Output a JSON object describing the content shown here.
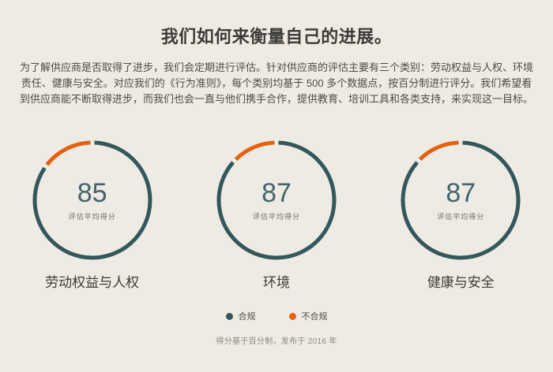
{
  "colors": {
    "background": "#EEEBE4",
    "compliant": "#33575D",
    "noncompliant": "#E6600D",
    "title_text": "#3E3C38",
    "body_text": "#4E4A44",
    "score_text": "#45636C",
    "muted_text": "#6F6C66",
    "footnote_text": "#8A867F"
  },
  "header": {
    "title": "我们如何来衡量自己的进展。",
    "paragraph": "为了解供应商是否取得了进步，我们会定期进行评估。针对供应商的评估主要有三个类别：劳动权益与人权、环境责任、健康与安全。对应我们的《行为准则》，每个类别均基于 500 多个数据点，按百分制进行评分。我们希望看到供应商能不断取得进步，而我们也会一直与他们携手合作，提供教育、培训工具和各类支持，来实现这一目标。"
  },
  "chart_data": {
    "type": "pie",
    "variant": "donut-progress-ring",
    "max_score": 100,
    "center_sublabel": "评估平均得分",
    "legend_position": "bottom",
    "legend": [
      {
        "label": "合规",
        "color": "#33575D"
      },
      {
        "label": "不合规",
        "color": "#E6600D"
      }
    ],
    "donuts": [
      {
        "category": "劳动权益与人权",
        "score": 85,
        "series": [
          {
            "name": "合规",
            "value": 85
          },
          {
            "name": "不合规",
            "value": 15
          }
        ]
      },
      {
        "category": "环境",
        "score": 87,
        "series": [
          {
            "name": "合规",
            "value": 87
          },
          {
            "name": "不合规",
            "value": 13
          }
        ]
      },
      {
        "category": "健康与安全",
        "score": 87,
        "series": [
          {
            "name": "合规",
            "value": 87
          },
          {
            "name": "不合规",
            "value": 13
          }
        ]
      }
    ]
  },
  "footnote": "得分基于百分制，发布于 2016 年"
}
